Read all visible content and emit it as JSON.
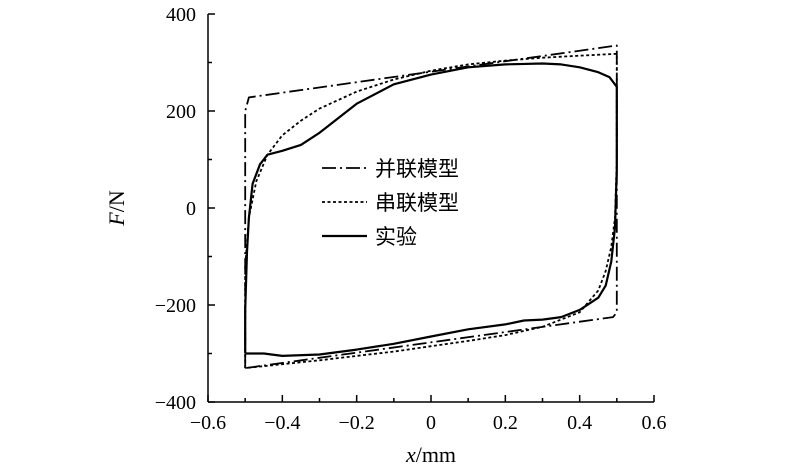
{
  "chart_data": {
    "type": "line",
    "xlabel_var": "x",
    "xlabel_unit": "/mm",
    "ylabel_var": "F",
    "ylabel_unit": "/N",
    "xlim": [
      -0.6,
      0.6
    ],
    "ylim": [
      -400,
      400
    ],
    "xticks": [
      -0.6,
      -0.4,
      -0.2,
      0,
      0.2,
      0.4,
      0.6
    ],
    "yticks": [
      -400,
      -200,
      0,
      200,
      400
    ],
    "xtick_labels": [
      "−0.6",
      "−0.4",
      "−0.2",
      "0",
      "0.2",
      "0.4",
      "0.6"
    ],
    "ytick_labels": [
      "−400",
      "−200",
      "0",
      "200",
      "400"
    ],
    "grid": false,
    "legend_position": "center",
    "series": [
      {
        "name": "并联模型",
        "style": "dashdot",
        "points": [
          [
            -0.5,
            -330
          ],
          [
            -0.5,
            200
          ],
          [
            -0.49,
            228
          ],
          [
            0.5,
            335
          ],
          [
            0.5,
            -215
          ],
          [
            0.49,
            -225
          ],
          [
            -0.5,
            -330
          ]
        ]
      },
      {
        "name": "串联模型",
        "style": "dotted",
        "points": [
          [
            -0.5,
            -330
          ],
          [
            -0.5,
            -120
          ],
          [
            -0.49,
            -20
          ],
          [
            -0.47,
            55
          ],
          [
            -0.44,
            110
          ],
          [
            -0.4,
            150
          ],
          [
            -0.35,
            180
          ],
          [
            -0.3,
            205
          ],
          [
            -0.2,
            240
          ],
          [
            -0.1,
            265
          ],
          [
            0.0,
            283
          ],
          [
            0.1,
            296
          ],
          [
            0.2,
            304
          ],
          [
            0.3,
            310
          ],
          [
            0.4,
            314
          ],
          [
            0.5,
            318
          ],
          [
            0.5,
            100
          ],
          [
            0.495,
            -20
          ],
          [
            0.485,
            -80
          ],
          [
            0.47,
            -130
          ],
          [
            0.45,
            -170
          ],
          [
            0.4,
            -215
          ],
          [
            0.3,
            -245
          ],
          [
            0.2,
            -262
          ],
          [
            0.1,
            -274
          ],
          [
            0.0,
            -285
          ],
          [
            -0.1,
            -296
          ],
          [
            -0.2,
            -305
          ],
          [
            -0.3,
            -314
          ],
          [
            -0.4,
            -322
          ],
          [
            -0.5,
            -330
          ]
        ]
      },
      {
        "name": "实验",
        "style": "solid",
        "points": [
          [
            -0.5,
            -300
          ],
          [
            -0.5,
            -210
          ],
          [
            -0.495,
            -90
          ],
          [
            -0.49,
            -20
          ],
          [
            -0.48,
            50
          ],
          [
            -0.46,
            90
          ],
          [
            -0.44,
            110
          ],
          [
            -0.4,
            118
          ],
          [
            -0.35,
            130
          ],
          [
            -0.3,
            155
          ],
          [
            -0.25,
            185
          ],
          [
            -0.2,
            215
          ],
          [
            -0.1,
            255
          ],
          [
            0.0,
            275
          ],
          [
            0.1,
            290
          ],
          [
            0.2,
            296
          ],
          [
            0.3,
            298
          ],
          [
            0.35,
            296
          ],
          [
            0.4,
            290
          ],
          [
            0.45,
            280
          ],
          [
            0.48,
            270
          ],
          [
            0.5,
            250
          ],
          [
            0.5,
            80
          ],
          [
            0.495,
            -40
          ],
          [
            0.485,
            -110
          ],
          [
            0.47,
            -160
          ],
          [
            0.45,
            -185
          ],
          [
            0.4,
            -210
          ],
          [
            0.35,
            -225
          ],
          [
            0.3,
            -230
          ],
          [
            0.25,
            -232
          ],
          [
            0.2,
            -240
          ],
          [
            0.1,
            -250
          ],
          [
            0.0,
            -265
          ],
          [
            -0.1,
            -280
          ],
          [
            -0.2,
            -292
          ],
          [
            -0.3,
            -302
          ],
          [
            -0.4,
            -305
          ],
          [
            -0.45,
            -300
          ],
          [
            -0.48,
            -300
          ],
          [
            -0.5,
            -300
          ]
        ]
      }
    ]
  }
}
